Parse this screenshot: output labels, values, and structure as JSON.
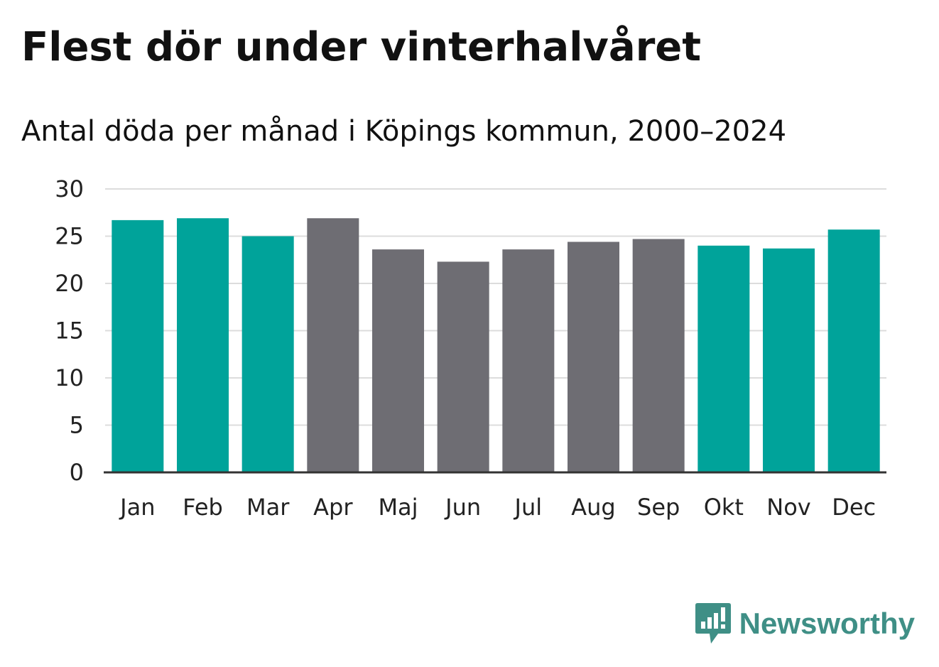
{
  "header": {
    "title": "Flest dör under vinterhalvåret",
    "subtitle": "Antal döda per månad i Köpings kommun, 2000–2024"
  },
  "brand": {
    "name": "Newsworthy",
    "icon": "newsworthy-logo-icon",
    "color": "#3f8f86"
  },
  "colors": {
    "winter": "#00a39a",
    "summer": "#6e6d73",
    "grid": "#dcdcdc",
    "axis": "#333333"
  },
  "chart_data": {
    "type": "bar",
    "title": "Flest dör under vinterhalvåret",
    "subtitle": "Antal döda per månad i Köpings kommun, 2000–2024",
    "xlabel": "",
    "ylabel": "",
    "ylim": [
      0,
      30
    ],
    "yticks": [
      0,
      5,
      10,
      15,
      20,
      25,
      30
    ],
    "grid": true,
    "categories": [
      "Jan",
      "Feb",
      "Mar",
      "Apr",
      "Maj",
      "Jun",
      "Jul",
      "Aug",
      "Sep",
      "Okt",
      "Nov",
      "Dec"
    ],
    "values": [
      26.7,
      26.9,
      25.0,
      26.9,
      23.6,
      22.3,
      23.6,
      24.4,
      24.7,
      24.0,
      23.7,
      25.7
    ],
    "highlight": [
      true,
      true,
      true,
      false,
      false,
      false,
      false,
      false,
      false,
      true,
      true,
      true
    ]
  }
}
